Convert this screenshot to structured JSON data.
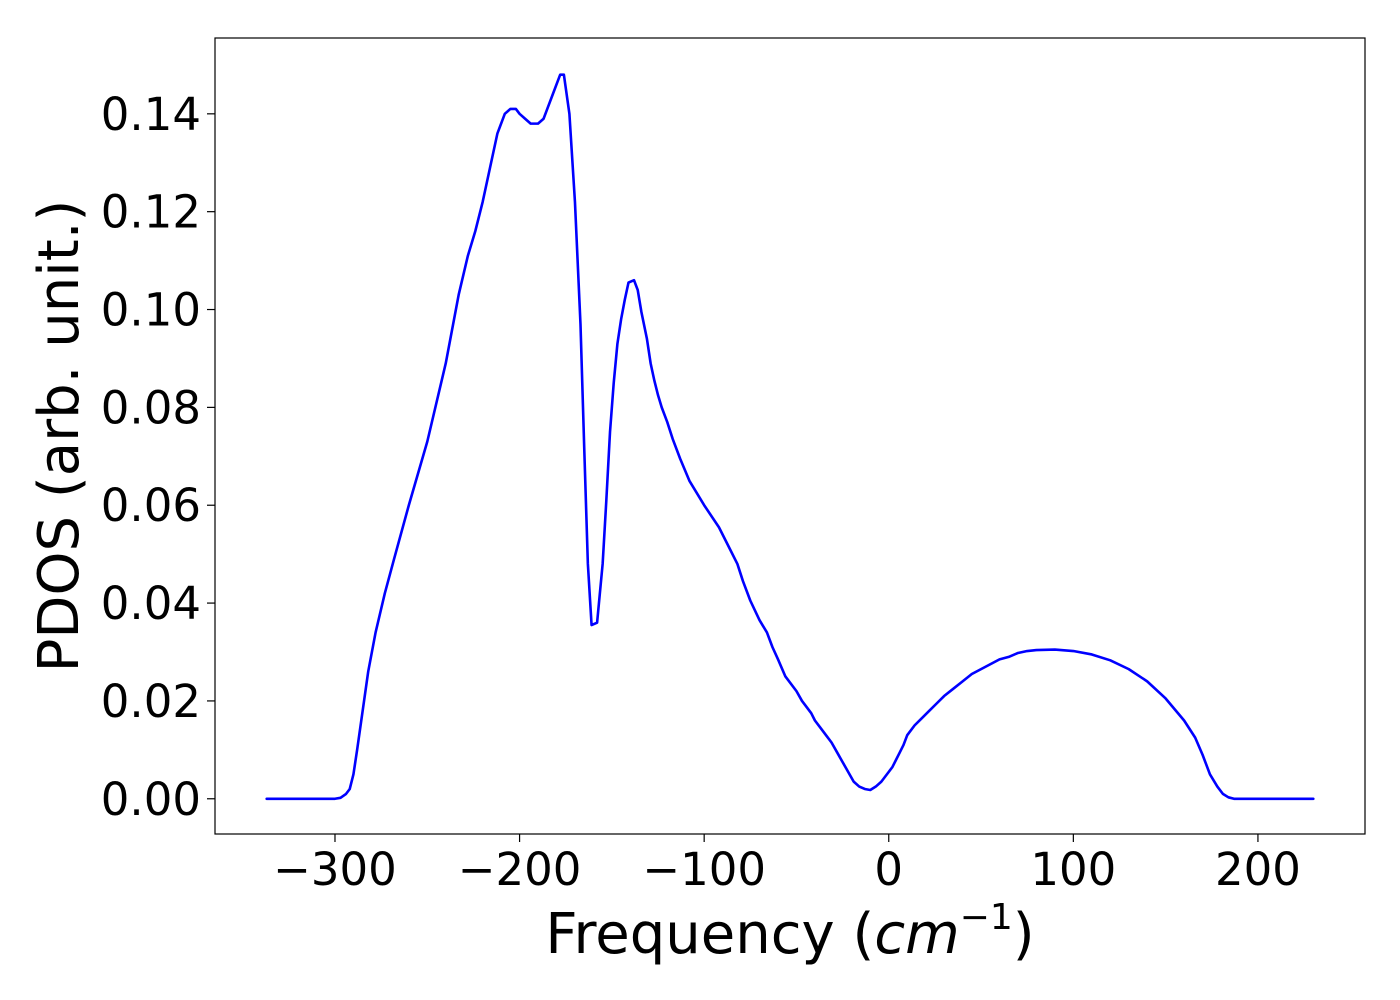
{
  "chart_data": {
    "type": "line",
    "title": "",
    "xlabel": {
      "prefix": "Frequency (",
      "unit_base": "cm",
      "unit_exp": "−1",
      "suffix": ")"
    },
    "ylabel": "PDOS (arb. unit.)",
    "xlim": [
      -365,
      258
    ],
    "ylim": [
      -0.0072,
      0.1555
    ],
    "grid": false,
    "legend": "none",
    "x_ticks": [
      -300,
      -200,
      -100,
      0,
      100,
      200
    ],
    "x_tick_labels": [
      "−300",
      "−200",
      "−100",
      "0",
      "100",
      "200"
    ],
    "y_ticks": [
      0.0,
      0.02,
      0.04,
      0.06,
      0.08,
      0.1,
      0.12,
      0.14
    ],
    "y_tick_labels": [
      "0.00",
      "0.02",
      "0.04",
      "0.06",
      "0.08",
      "0.10",
      "0.12",
      "0.14"
    ],
    "colors": {
      "series": "#0000ff",
      "axes": "#000000",
      "background": "#ffffff"
    },
    "series": [
      {
        "x": [
          -337,
          -300,
          -297,
          -294,
          -292,
          -290,
          -288,
          -285,
          -282,
          -278,
          -273,
          -268,
          -260,
          -250,
          -240,
          -233,
          -228,
          -224,
          -220,
          -216,
          -212,
          -208,
          -205,
          -202,
          -200,
          -197,
          -194,
          -190,
          -187,
          -185,
          -182,
          -178,
          -176,
          -173,
          -170,
          -167,
          -165,
          -163,
          -161,
          -158,
          -155,
          -153,
          -151,
          -149,
          -147,
          -145,
          -143,
          -141,
          -138,
          -136,
          -134,
          -131,
          -129,
          -127,
          -125,
          -123,
          -120,
          -117,
          -113,
          -108,
          -100,
          -92,
          -86,
          -82,
          -79,
          -75,
          -70,
          -66,
          -63,
          -60,
          -56,
          -50,
          -47,
          -45,
          -42,
          -40,
          -37,
          -34,
          -31,
          -28,
          -25,
          -22,
          -19,
          -16,
          -13,
          -10,
          -7,
          -4,
          -2,
          0,
          2,
          4,
          6,
          8,
          10,
          14,
          18,
          22,
          26,
          30,
          35,
          40,
          45,
          50,
          55,
          60,
          65,
          70,
          75,
          80,
          90,
          100,
          110,
          120,
          130,
          140,
          150,
          160,
          166,
          170,
          174,
          178,
          181,
          184,
          187,
          190,
          195,
          200,
          230
        ],
        "y": [
          0.0,
          0.0,
          0.0002,
          0.001,
          0.002,
          0.005,
          0.01,
          0.018,
          0.026,
          0.034,
          0.042,
          0.049,
          0.06,
          0.073,
          0.089,
          0.103,
          0.111,
          0.116,
          0.122,
          0.129,
          0.136,
          0.14,
          0.141,
          0.141,
          0.14,
          0.139,
          0.138,
          0.138,
          0.139,
          0.141,
          0.144,
          0.148,
          0.148,
          0.14,
          0.122,
          0.097,
          0.072,
          0.048,
          0.0355,
          0.036,
          0.048,
          0.061,
          0.075,
          0.085,
          0.093,
          0.098,
          0.102,
          0.1055,
          0.106,
          0.104,
          0.0995,
          0.094,
          0.089,
          0.0855,
          0.0825,
          0.08,
          0.077,
          0.0735,
          0.0695,
          0.065,
          0.06,
          0.0555,
          0.051,
          0.048,
          0.0445,
          0.0405,
          0.0365,
          0.034,
          0.031,
          0.0285,
          0.025,
          0.022,
          0.02,
          0.019,
          0.0175,
          0.016,
          0.0145,
          0.013,
          0.0115,
          0.0095,
          0.0075,
          0.0055,
          0.0035,
          0.0025,
          0.002,
          0.0018,
          0.0025,
          0.0035,
          0.0045,
          0.0055,
          0.0065,
          0.008,
          0.0095,
          0.011,
          0.013,
          0.015,
          0.0165,
          0.018,
          0.0195,
          0.021,
          0.0225,
          0.024,
          0.0255,
          0.0265,
          0.0275,
          0.0285,
          0.029,
          0.0298,
          0.0302,
          0.0304,
          0.0305,
          0.0302,
          0.0295,
          0.0283,
          0.0265,
          0.024,
          0.0205,
          0.016,
          0.0125,
          0.009,
          0.005,
          0.0025,
          0.001,
          0.0003,
          0.0,
          0.0,
          0.0,
          0.0,
          0.0
        ]
      }
    ]
  }
}
